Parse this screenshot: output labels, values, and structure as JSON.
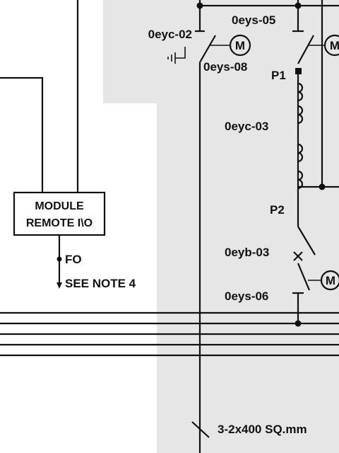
{
  "labels": {
    "breaker_c02": "0eyc-02",
    "breaker_s05": "0eys-05",
    "breaker_s08": "0eys-08",
    "p1": "P1",
    "breaker_c03": "0eyc-03",
    "p2": "P2",
    "breaker_b03": "0eyb-03",
    "breaker_s06": "0eys-06",
    "module_line1": "MODULE",
    "module_line2": "REMOTE I\\O",
    "fo": "FO",
    "see_note": "SEE NOTE 4",
    "cable_spec": "3-2x400 SQ.mm",
    "motor_symbol": "M"
  },
  "colors": {
    "shaded_region": "#e6e6e6",
    "line": "#111111"
  }
}
